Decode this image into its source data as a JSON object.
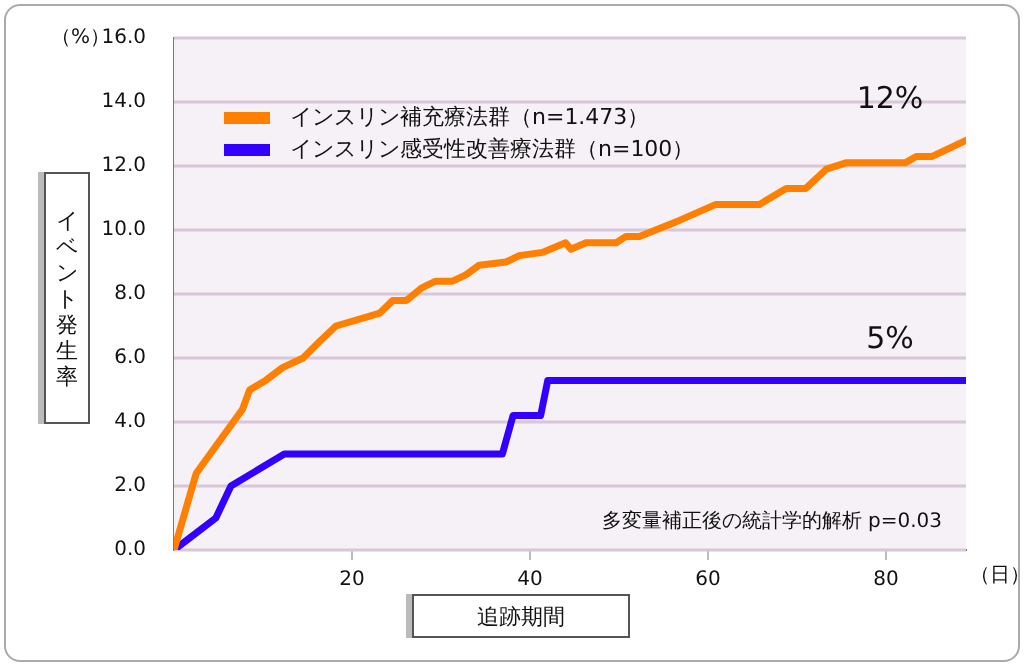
{
  "chart_data": {
    "type": "line",
    "xlabel": "追跡期間",
    "ylabel": "イベント発生率",
    "xlim": [
      0,
      89
    ],
    "xticks": [
      20,
      40,
      60,
      80
    ],
    "ylim": [
      0,
      16
    ],
    "yticks": [
      {
        "value": 0,
        "label": "0.0"
      },
      {
        "value": 2,
        "label": "2.0"
      },
      {
        "value": 4,
        "label": "4.0"
      },
      {
        "value": 6,
        "label": "6.0"
      },
      {
        "value": 8,
        "label": "8.0"
      },
      {
        "value": 10,
        "label": "10.0"
      },
      {
        "value": 12,
        "label": "12.0"
      },
      {
        "value": 14,
        "label": "14.0"
      },
      {
        "value": 16,
        "label": "16.0"
      }
    ],
    "grid": "y",
    "legend": "top left",
    "marker": "none",
    "line_style": "solid",
    "series": [
      {
        "name": "インスリン補充療法群（n=1.473）",
        "color": "#ff8000",
        "x": [
          0,
          2.5,
          7.7,
          8.5,
          10.3,
          12.2,
          14.5,
          16.3,
          18.2,
          21.9,
          23.1,
          24.6,
          26.1,
          27.9,
          29.4,
          31.3,
          32.8,
          34.3,
          37.3,
          38.8,
          41.4,
          44.0,
          44.6,
          46.3,
          49.7,
          50.8,
          52.3,
          56.8,
          60.9,
          65.8,
          68.8,
          71.0,
          73.3,
          75.5,
          82.2,
          83.4,
          85.2,
          89
        ],
        "values": [
          0,
          2.4,
          4.4,
          5.0,
          5.3,
          5.7,
          6.0,
          6.5,
          7.0,
          7.3,
          7.4,
          7.8,
          7.8,
          8.2,
          8.4,
          8.4,
          8.6,
          8.9,
          9.0,
          9.2,
          9.3,
          9.6,
          9.4,
          9.6,
          9.6,
          9.8,
          9.8,
          10.3,
          10.8,
          10.8,
          11.3,
          11.3,
          11.9,
          12.1,
          12.1,
          12.3,
          12.3,
          12.8
        ]
      },
      {
        "name": "インスリン感受性改善療法群（n=100）",
        "color": "#3300ff",
        "x": [
          0,
          4.7,
          6.4,
          12.4,
          36.9,
          38.1,
          41.2,
          42.0,
          89
        ],
        "values": [
          0,
          1.0,
          2.0,
          3.0,
          3.0,
          4.2,
          4.2,
          5.3,
          5.3
        ]
      }
    ],
    "annotations": [
      "12%",
      "5%",
      "（%）",
      "（日）",
      "多変量補正後の統計学的解析 p=0.03"
    ]
  }
}
